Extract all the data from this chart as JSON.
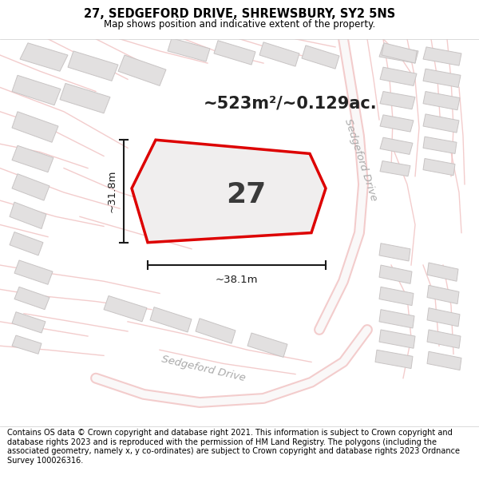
{
  "title_line1": "27, SEDGEFORD DRIVE, SHREWSBURY, SY2 5NS",
  "title_line2": "Map shows position and indicative extent of the property.",
  "area_text": "~523m²/~0.129ac.",
  "property_number": "27",
  "dim_width": "~38.1m",
  "dim_height": "~31.8m",
  "street_label_right": "Sedgeford Drive",
  "street_label_bottom": "Sedgeford Drive",
  "footer_text": "Contains OS data © Crown copyright and database right 2021. This information is subject to Crown copyright and database rights 2023 and is reproduced with the permission of HM Land Registry. The polygons (including the associated geometry, namely x, y co-ordinates) are subject to Crown copyright and database rights 2023 Ordnance Survey 100026316.",
  "map_bg_color": "#f5f3f3",
  "property_fill": "#f0eeee",
  "property_edge": "#dd0000",
  "neighbor_fill": "#e2e0e0",
  "neighbor_edge": "#c8c4c4",
  "road_outline_color": "#f0c0c0",
  "road_fill_color": "#faf8f8",
  "title_bg": "#ffffff",
  "footer_bg": "#ffffff",
  "dim_line_color": "#1a1a1a",
  "text_color": "#222222",
  "street_color": "#aaaaaa"
}
